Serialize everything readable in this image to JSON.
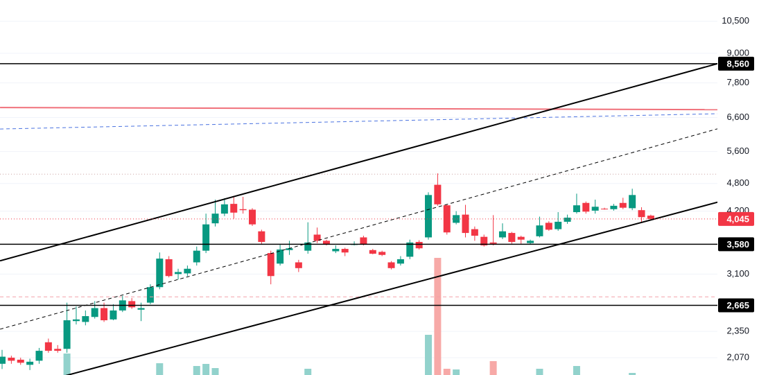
{
  "chart_data": {
    "type": "candlestick",
    "categories": [
      null,
      null,
      null,
      null,
      null,
      null,
      null,
      null,
      null,
      null,
      null,
      null,
      null,
      null,
      null,
      null,
      null,
      null,
      null,
      null,
      null,
      null,
      null,
      null,
      null,
      null,
      null,
      null,
      null,
      null,
      null,
      null,
      null,
      null,
      null,
      null,
      null,
      null,
      null,
      null,
      null,
      null,
      null,
      null,
      null,
      null,
      null,
      null,
      null,
      null,
      null,
      null,
      null,
      null,
      null,
      null,
      null,
      null,
      null,
      null,
      null,
      null,
      null,
      null,
      null,
      null,
      null,
      null,
      null,
      null,
      null
    ],
    "open": [
      2010,
      2070,
      2050,
      2000,
      2040,
      2230,
      2160,
      2160,
      2470,
      2460,
      2520,
      2630,
      2490,
      2600,
      2720,
      2610,
      2700,
      2910,
      3330,
      3100,
      3110,
      3280,
      3470,
      3960,
      4150,
      4350,
      4240,
      4230,
      3810,
      3430,
      3260,
      3480,
      3280,
      3470,
      3750,
      3640,
      3460,
      3500,
      3570,
      3700,
      3480,
      3450,
      3280,
      3260,
      3370,
      3620,
      3700,
      4770,
      4320,
      3970,
      4130,
      3850,
      3710,
      3610,
      3700,
      3780,
      3710,
      3600,
      3720,
      3970,
      3850,
      3990,
      4180,
      4370,
      4210,
      4250,
      4240,
      4370,
      4260,
      4220,
      4110
    ],
    "high": [
      2150,
      2090,
      2070,
      2060,
      2170,
      2270,
      2200,
      2700,
      2650,
      2600,
      2720,
      2700,
      2680,
      2790,
      2760,
      2700,
      2950,
      3440,
      3380,
      3180,
      3230,
      3540,
      4150,
      4440,
      4470,
      4520,
      4500,
      4260,
      3840,
      3470,
      3570,
      3640,
      3320,
      3980,
      3880,
      3660,
      3560,
      3520,
      3630,
      3730,
      3500,
      3470,
      3300,
      3380,
      3660,
      3650,
      4600,
      5040,
      4340,
      4200,
      4330,
      3900,
      3750,
      4120,
      3960,
      3800,
      3730,
      3660,
      4090,
      4000,
      4180,
      4130,
      4570,
      4400,
      4440,
      4270,
      4350,
      4480,
      4680,
      4280,
      4130
    ],
    "low": [
      1960,
      2010,
      2000,
      1950,
      2010,
      2120,
      2120,
      2120,
      2430,
      2420,
      2500,
      2460,
      2480,
      2580,
      2620,
      2470,
      2680,
      2880,
      3050,
      3020,
      3070,
      3230,
      3430,
      3900,
      4100,
      4050,
      4150,
      3910,
      3580,
      2950,
      3230,
      3400,
      3130,
      3420,
      3600,
      3560,
      3430,
      3380,
      3560,
      3560,
      3410,
      3380,
      3170,
      3230,
      3330,
      3490,
      3660,
      4310,
      3750,
      3940,
      3700,
      3640,
      3540,
      3560,
      3670,
      3590,
      3590,
      3580,
      3700,
      3820,
      3820,
      3950,
      4150,
      4150,
      4150,
      4230,
      4210,
      4240,
      4220,
      3980,
      4030
    ],
    "close": [
      2080,
      2040,
      2020,
      2030,
      2140,
      2140,
      2140,
      2480,
      2490,
      2530,
      2630,
      2480,
      2600,
      2730,
      2640,
      2630,
      2910,
      3340,
      3070,
      3130,
      3180,
      3470,
      3940,
      4150,
      4340,
      4170,
      4220,
      3940,
      3620,
      3070,
      3490,
      3510,
      3190,
      3610,
      3640,
      3580,
      3500,
      3440,
      3580,
      3580,
      3420,
      3400,
      3190,
      3330,
      3610,
      3510,
      4540,
      4340,
      3790,
      4120,
      3780,
      3730,
      3560,
      3590,
      3810,
      3620,
      3660,
      3640,
      3920,
      3840,
      3990,
      4070,
      4320,
      4190,
      4290,
      4240,
      4310,
      4270,
      4540,
      4080,
      4045
    ],
    "volume": [
      8,
      8,
      8,
      8,
      8,
      8,
      8,
      25,
      8,
      8,
      8,
      8,
      8,
      8,
      8,
      8,
      8,
      18,
      8,
      8,
      8,
      16,
      17.5,
      14.5,
      8,
      8,
      8,
      8,
      8,
      8,
      8,
      8,
      8,
      14,
      8,
      8,
      8,
      8,
      8,
      8,
      8,
      8,
      8,
      8,
      8,
      8,
      38.5,
      94,
      14,
      13.5,
      8,
      8,
      8,
      19.5,
      8,
      8,
      8,
      8,
      14,
      8,
      8,
      8,
      16,
      8,
      8,
      8,
      8,
      8,
      11,
      8,
      8
    ],
    "up_color": "#089981",
    "down_color": "#f23645",
    "volume_up_color": "#92d2cc",
    "volume_down_color": "#f7a9a7",
    "ylim": [
      1904,
      11640
    ],
    "log_scale": true,
    "volume_lim": [
      0,
      100
    ],
    "yticks": [
      {
        "value": 10500,
        "label": "10,500"
      },
      {
        "value": 9000,
        "label": "9,000"
      },
      {
        "value": 7800,
        "label": "7,800"
      },
      {
        "value": 6600,
        "label": "6,600"
      },
      {
        "value": 5600,
        "label": "5,600"
      },
      {
        "value": 4800,
        "label": "4,800"
      },
      {
        "value": 4200,
        "label": "4,200"
      },
      {
        "value": 3100,
        "label": "3,100"
      },
      {
        "value": 2350,
        "label": "2,350"
      },
      {
        "value": 2070,
        "label": "2,070"
      }
    ],
    "grid": true,
    "hlines": [
      {
        "value": 8560,
        "label": "8,560",
        "color": "#000000",
        "style": "solid"
      },
      {
        "value": 3580,
        "label": "3,580",
        "color": "#000000",
        "style": "solid"
      },
      {
        "value": 2665,
        "label": "2,665",
        "color": "#000000",
        "style": "solid"
      },
      {
        "value": 4045,
        "label": "4,045",
        "color": "#f23645",
        "style": "dotted"
      }
    ],
    "lines": [
      {
        "start": [
          -0.22,
          6926
        ],
        "end": [
          77.2,
          6857
        ],
        "color": "#f0707a",
        "style": "solid",
        "width": 2
      },
      {
        "start": [
          -0.22,
          6244
        ],
        "end": [
          77.2,
          6722
        ],
        "color": "#4a72e0",
        "style": "dashed",
        "width": 1
      },
      {
        "start": [
          -0.22,
          5020
        ],
        "end": [
          77.2,
          5020
        ],
        "color": "#c8a0a0",
        "style": "dotted",
        "width": 1
      },
      {
        "start": [
          -0.22,
          2777
        ],
        "end": [
          77.2,
          2777
        ],
        "color": "#f4a0a8",
        "style": "dashed",
        "width": 1
      },
      {
        "start": [
          -0.22,
          3304
        ],
        "end": [
          77.2,
          8560
        ],
        "color": "#000000",
        "style": "solid",
        "width": 2
      },
      {
        "start": [
          -0.22,
          2375
        ],
        "end": [
          77.2,
          6250
        ],
        "color": "#000000",
        "style": "dashed",
        "width": 1
      },
      {
        "start": [
          -0.22,
          1745
        ],
        "end": [
          77.2,
          4385
        ],
        "color": "#000000",
        "style": "solid",
        "width": 2
      }
    ]
  }
}
